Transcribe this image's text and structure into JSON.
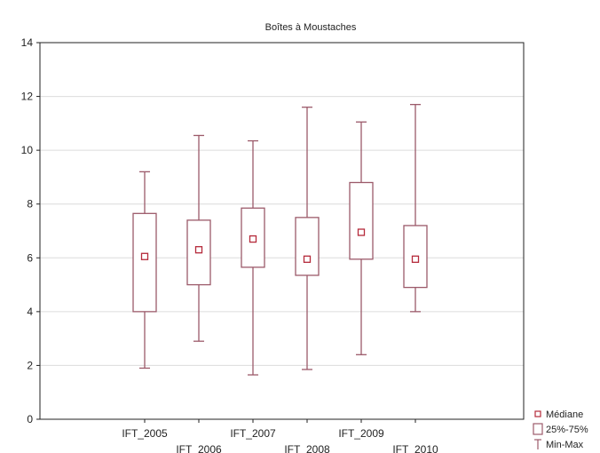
{
  "chart_data": {
    "type": "box",
    "title": "Boîtes à Moustaches",
    "xlabel": "",
    "ylabel": "",
    "ylim": [
      0,
      14
    ],
    "y_ticks": [
      0,
      2,
      4,
      6,
      8,
      10,
      12,
      14
    ],
    "grid": "horizontal",
    "legend_position": "bottom-right",
    "categories": [
      "IFT_2005",
      "IFT_2006",
      "IFT_2007",
      "IFT_2008",
      "IFT_2009",
      "IFT_2010"
    ],
    "series": [
      {
        "min": 1.9,
        "q1": 4.0,
        "median": 6.05,
        "q3": 7.65,
        "max": 9.2
      },
      {
        "min": 2.9,
        "q1": 5.0,
        "median": 6.3,
        "q3": 7.4,
        "max": 10.55
      },
      {
        "min": 1.65,
        "q1": 5.65,
        "median": 6.7,
        "q3": 7.85,
        "max": 10.35
      },
      {
        "min": 1.85,
        "q1": 5.35,
        "median": 5.95,
        "q3": 7.5,
        "max": 11.6
      },
      {
        "min": 2.4,
        "q1": 5.95,
        "median": 6.95,
        "q3": 8.8,
        "max": 11.05
      },
      {
        "min": 4.0,
        "q1": 4.9,
        "median": 5.95,
        "q3": 7.2,
        "max": 11.7
      }
    ],
    "legend": [
      {
        "symbol": "small-square",
        "label": "Médiane"
      },
      {
        "symbol": "box",
        "label": "25%-75%"
      },
      {
        "symbol": "whisker",
        "label": "Min-Max"
      }
    ],
    "colors": {
      "box": "#9c5a6a",
      "median": "#b52a3a",
      "grid": "#dcdcdc",
      "axis": "#222222"
    }
  }
}
